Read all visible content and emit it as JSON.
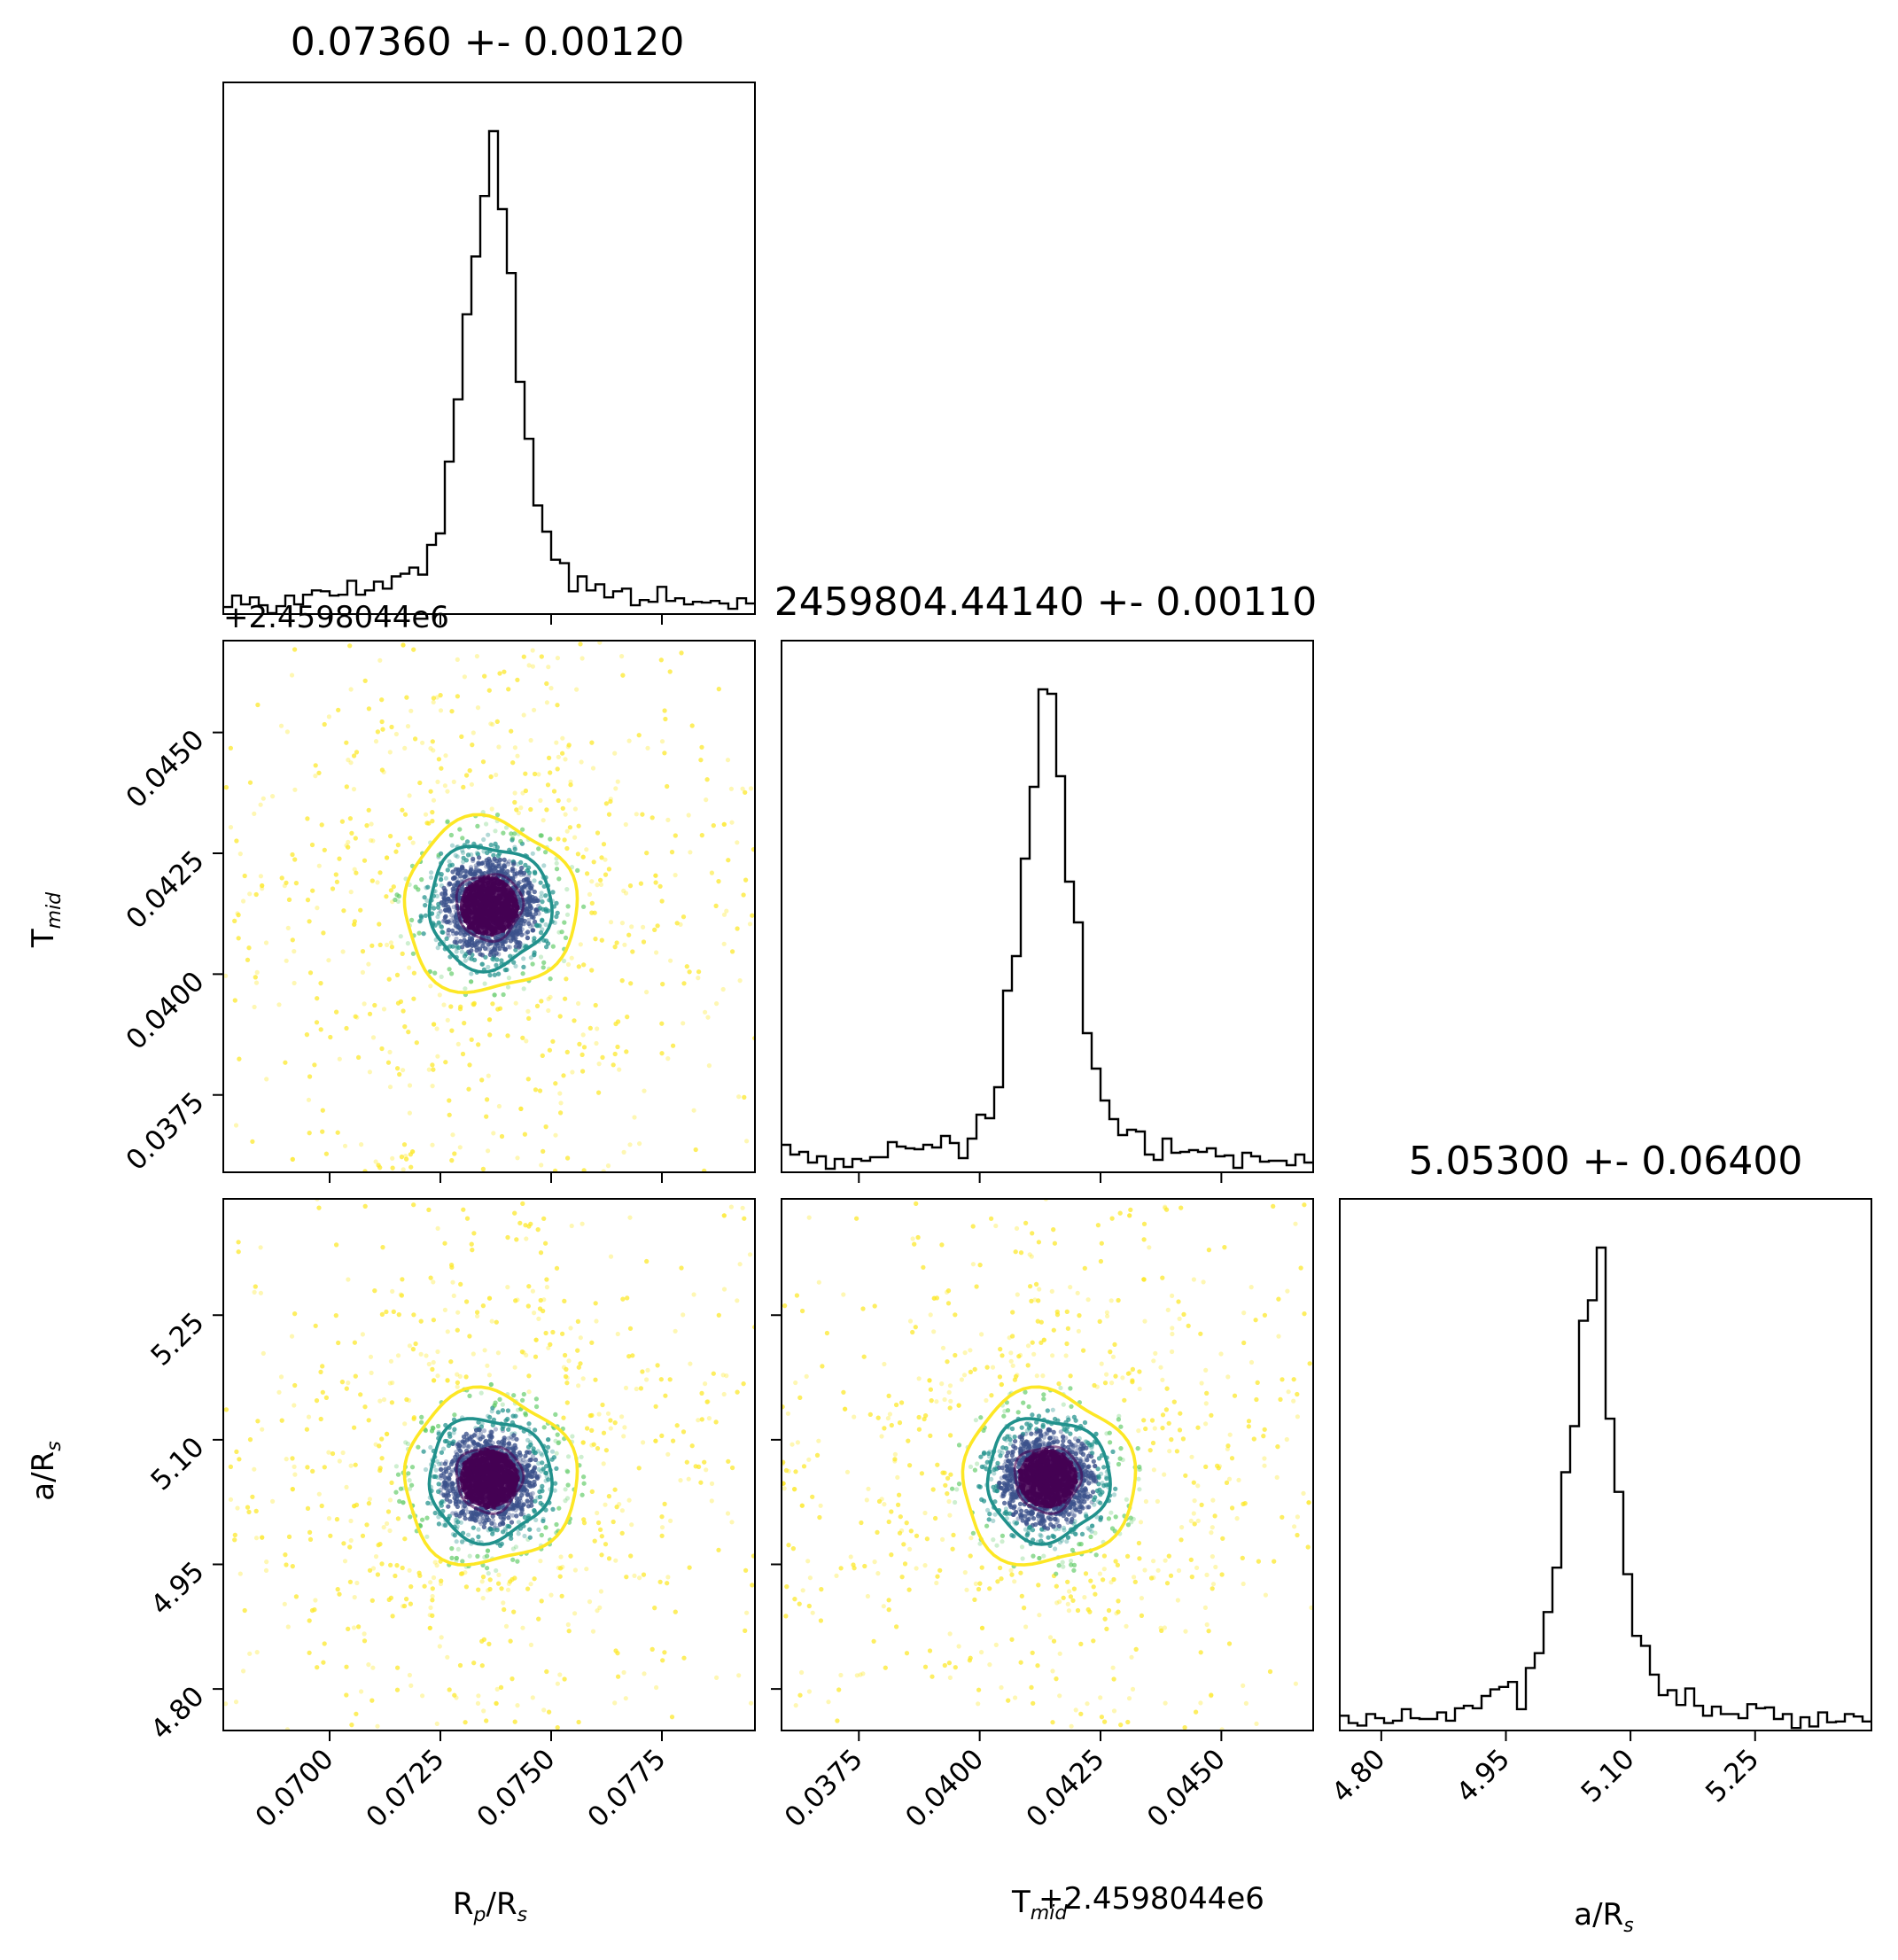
{
  "chart_data": {
    "type": "corner",
    "parameters": [
      {
        "key": "rp",
        "label_main": "R",
        "label_sub": "p",
        "label_mid": "/R",
        "label_sub2": "s",
        "title": "0.07360 +- 0.00120",
        "median": 0.0736,
        "sigma": 0.0012,
        "range": [
          0.0676,
          0.0796
        ],
        "ticks": [
          0.07,
          0.0725,
          0.075,
          0.0775
        ],
        "tick_labels": [
          "0.0700",
          "0.0725",
          "0.0750",
          "0.0775"
        ]
      },
      {
        "key": "tmid",
        "label_main": "T",
        "label_sub": "mid",
        "title": "2459804.44140 +- 0.00110",
        "median": 0.0414,
        "sigma": 0.0011,
        "offset_text": "+2.4598044e6",
        "xlabel_text": "T",
        "xlabel_sub": "mid",
        "xlabel_offset": "+2.4598044e6",
        "range": [
          0.0359,
          0.0469
        ],
        "ticks": [
          0.0375,
          0.04,
          0.0425,
          0.045
        ],
        "tick_labels": [
          "0.0375",
          "0.0400",
          "0.0425",
          "0.0450"
        ]
      },
      {
        "key": "ars",
        "label_main": "a/R",
        "label_sub": "s",
        "title": "5.05300 +- 0.06400",
        "median": 5.053,
        "sigma": 0.064,
        "range": [
          4.75,
          5.39
        ],
        "ticks": [
          4.8,
          4.95,
          5.1,
          5.25
        ],
        "tick_labels": [
          "4.80",
          "4.95",
          "5.10",
          "5.25"
        ]
      }
    ],
    "contour_colors": [
      "#440154",
      "#21918c",
      "#fde725"
    ],
    "point_colors": [
      "#440154",
      "#3b528b",
      "#21918c",
      "#5ec962",
      "#fde725"
    ],
    "histogram_style": "step",
    "grid": false
  }
}
